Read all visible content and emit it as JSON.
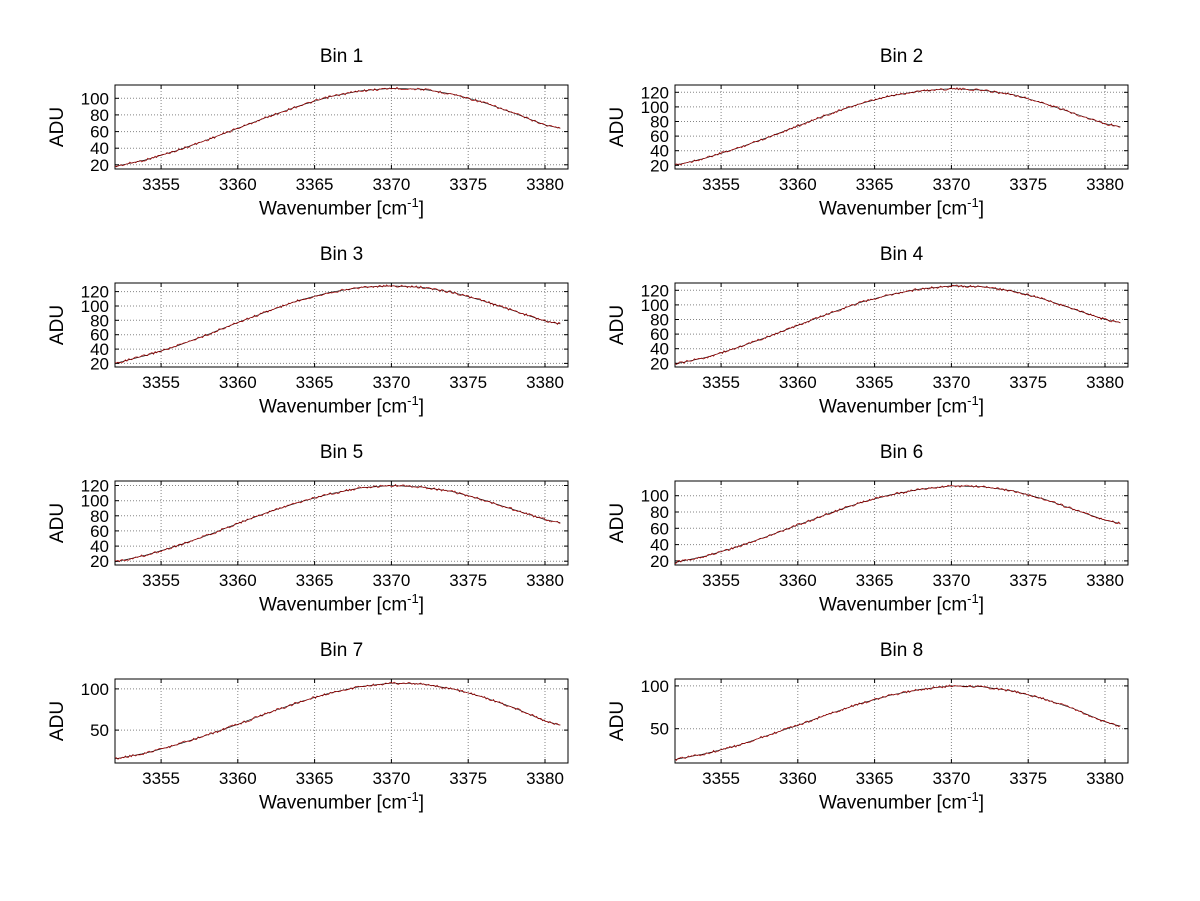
{
  "chart_data": {
    "type": "line",
    "y_label": "ADU",
    "x_label": {
      "pre": "Wavenumber [cm",
      "sup": "-1",
      "post": "]"
    },
    "line_color": "#a00000",
    "line_color_secondary": "#000000",
    "grid": true,
    "x": [
      3352,
      3354,
      3356,
      3358,
      3360,
      3362,
      3364,
      3366,
      3368,
      3370,
      3372,
      3374,
      3376,
      3378,
      3380,
      3381
    ],
    "xticks": [
      3355,
      3360,
      3365,
      3370,
      3375,
      3380
    ],
    "xlim": [
      3352,
      3381.5
    ],
    "plots": [
      {
        "title": "Bin 1",
        "yticks": [
          20,
          40,
          60,
          80,
          100
        ],
        "ylim": [
          15,
          116
        ],
        "values": [
          18,
          26,
          37,
          50,
          64,
          78,
          91,
          102,
          109,
          112,
          111,
          105,
          95,
          82,
          68,
          64
        ]
      },
      {
        "title": "Bin 2",
        "yticks": [
          20,
          40,
          60,
          80,
          100,
          120
        ],
        "ylim": [
          15,
          130
        ],
        "values": [
          20,
          30,
          43,
          58,
          74,
          90,
          104,
          115,
          122,
          125,
          123,
          117,
          105,
          91,
          77,
          73
        ]
      },
      {
        "title": "Bin 3",
        "yticks": [
          20,
          40,
          60,
          80,
          100,
          120
        ],
        "ylim": [
          15,
          132
        ],
        "values": [
          20,
          31,
          44,
          60,
          77,
          93,
          108,
          119,
          126,
          128,
          126,
          119,
          107,
          93,
          79,
          75
        ]
      },
      {
        "title": "Bin 4",
        "yticks": [
          20,
          40,
          60,
          80,
          100,
          120
        ],
        "ylim": [
          15,
          130
        ],
        "values": [
          19,
          28,
          41,
          56,
          72,
          88,
          103,
          114,
          122,
          126,
          125,
          119,
          108,
          94,
          80,
          76
        ]
      },
      {
        "title": "Bin 5",
        "yticks": [
          20,
          40,
          60,
          80,
          100,
          120
        ],
        "ylim": [
          15,
          126
        ],
        "values": [
          19,
          28,
          40,
          54,
          70,
          85,
          98,
          109,
          117,
          120,
          118,
          112,
          101,
          88,
          75,
          71
        ]
      },
      {
        "title": "Bin 6",
        "yticks": [
          20,
          40,
          60,
          80,
          100
        ],
        "ylim": [
          15,
          118
        ],
        "values": [
          18,
          26,
          37,
          50,
          64,
          78,
          91,
          101,
          108,
          112,
          111,
          106,
          96,
          83,
          70,
          66
        ]
      },
      {
        "title": "Bin 7",
        "yticks": [
          50,
          100
        ],
        "ylim": [
          10,
          112
        ],
        "values": [
          15,
          22,
          32,
          44,
          57,
          71,
          84,
          95,
          103,
          107,
          106,
          100,
          90,
          77,
          61,
          56
        ]
      },
      {
        "title": "Bin 8",
        "yticks": [
          50,
          100
        ],
        "ylim": [
          10,
          108
        ],
        "values": [
          14,
          21,
          30,
          42,
          54,
          67,
          79,
          89,
          96,
          100,
          99,
          94,
          85,
          73,
          58,
          53
        ]
      }
    ]
  }
}
